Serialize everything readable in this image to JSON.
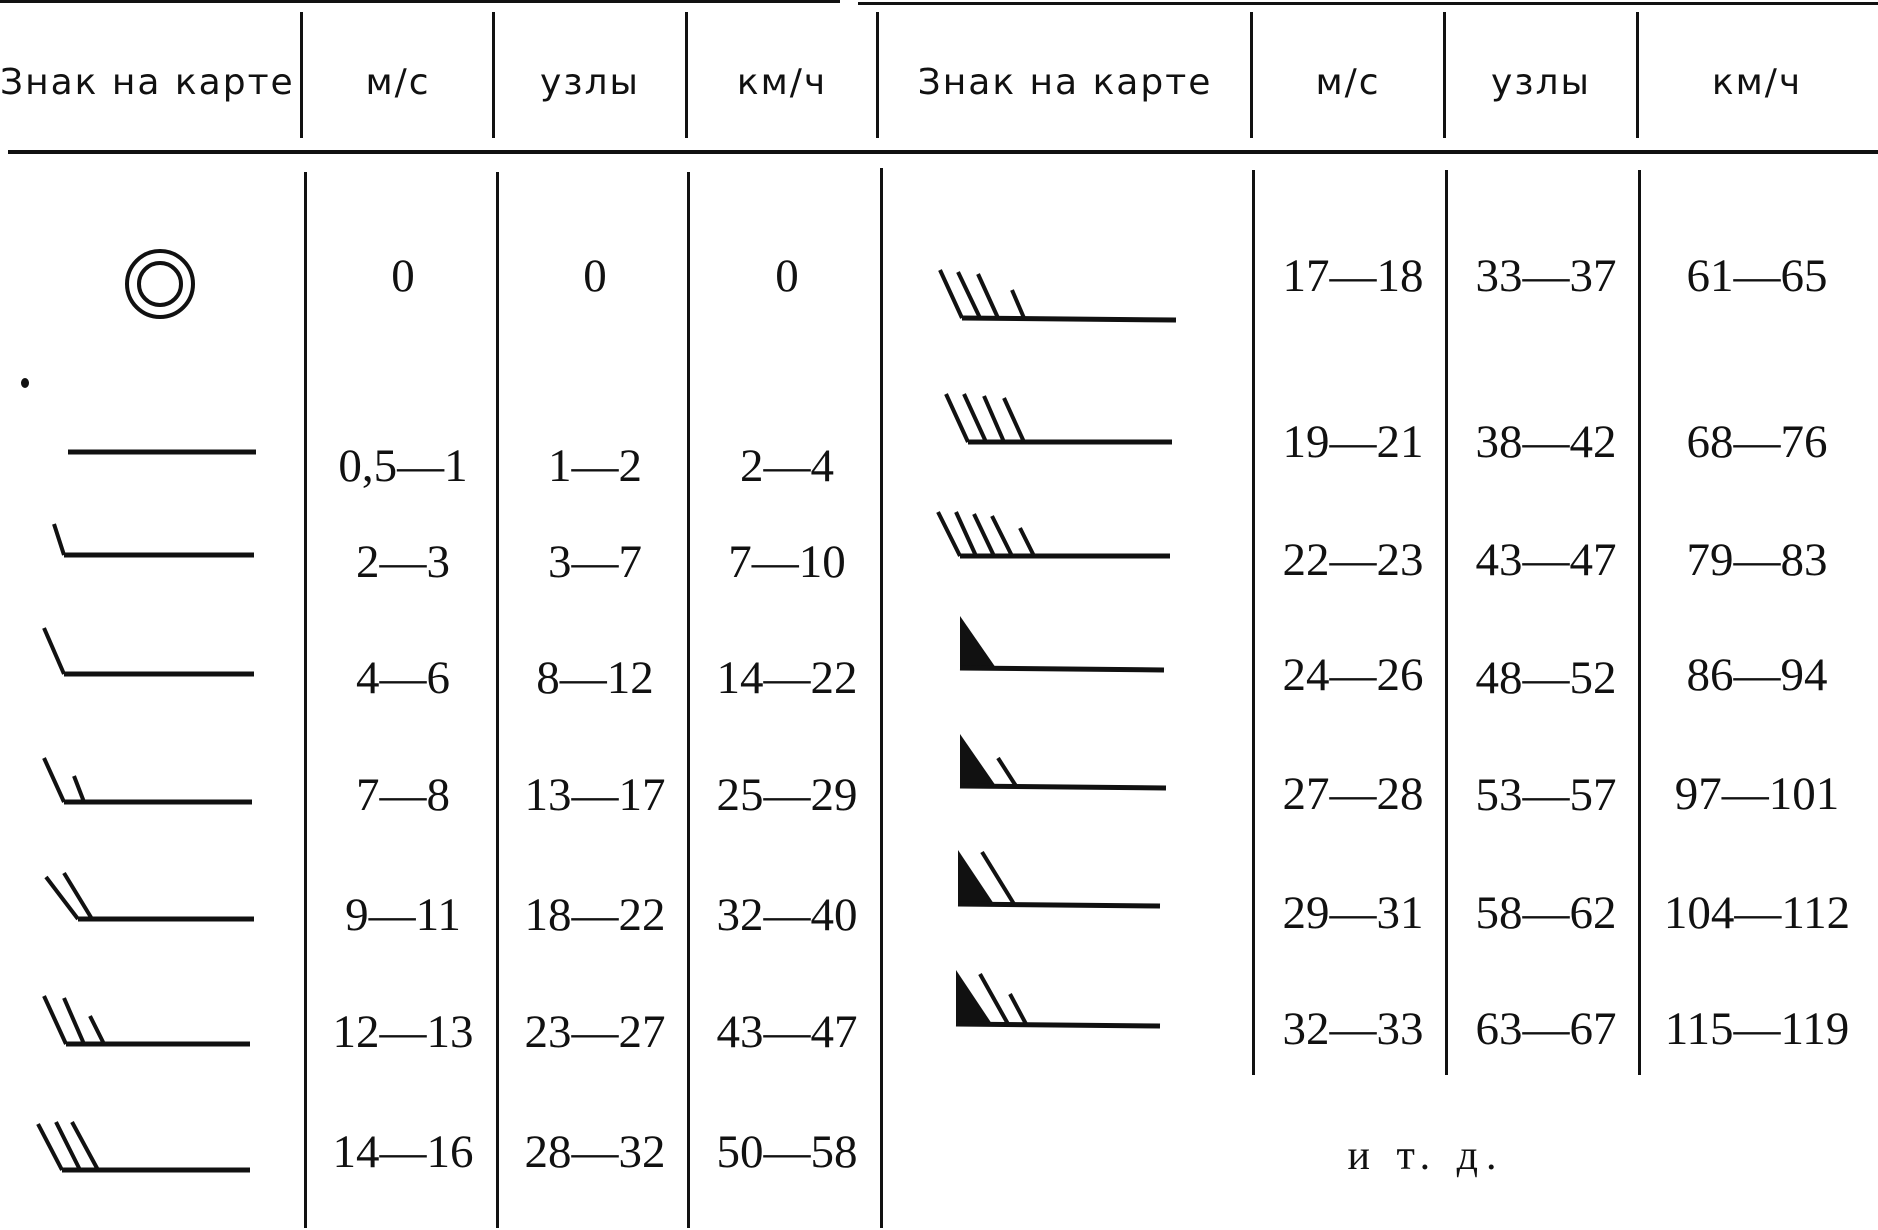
{
  "header": {
    "left": {
      "sign": "Знак на карте",
      "ms": "м/с",
      "knots": "узлы",
      "kmh": "км/ч"
    },
    "right": {
      "sign": "Знак на карте",
      "ms": "м/с",
      "knots": "узлы",
      "kmh": "км/ч"
    }
  },
  "left_rows": [
    {
      "symbol": "calm-circle-icon",
      "ms": "0",
      "knots": "0",
      "kmh": "0"
    },
    {
      "symbol": "wind-shaft-no-barb-icon",
      "ms": "0,5—1",
      "knots": "1—2",
      "kmh": "2—4"
    },
    {
      "symbol": "wind-half-barb-icon",
      "ms": "2—3",
      "knots": "3—7",
      "kmh": "7—10"
    },
    {
      "symbol": "wind-one-barb-icon",
      "ms": "4—6",
      "knots": "8—12",
      "kmh": "14—22"
    },
    {
      "symbol": "wind-one-and-half-barb-icon",
      "ms": "7—8",
      "knots": "13—17",
      "kmh": "25—29"
    },
    {
      "symbol": "wind-two-barbs-icon",
      "ms": "9—11",
      "knots": "18—22",
      "kmh": "32—40"
    },
    {
      "symbol": "wind-two-and-half-barbs-icon",
      "ms": "12—13",
      "knots": "23—27",
      "kmh": "43—47"
    },
    {
      "symbol": "wind-three-barbs-icon",
      "ms": "14—16",
      "knots": "28—32",
      "kmh": "50—58"
    }
  ],
  "right_rows": [
    {
      "symbol": "wind-three-and-half-barbs-icon",
      "ms": "17—18",
      "knots": "33—37",
      "kmh": "61—65"
    },
    {
      "symbol": "wind-four-barbs-icon",
      "ms": "19—21",
      "knots": "38—42",
      "kmh": "68—76"
    },
    {
      "symbol": "wind-four-and-half-barbs-icon",
      "ms": "22—23",
      "knots": "43—47",
      "kmh": "79—83"
    },
    {
      "symbol": "wind-pennant-icon",
      "ms": "24—26",
      "knots": "48—52",
      "kmh": "86—94"
    },
    {
      "symbol": "wind-pennant-half-barb-icon",
      "ms": "27—28",
      "knots": "53—57",
      "kmh": "97—101"
    },
    {
      "symbol": "wind-pennant-one-barb-icon",
      "ms": "29—31",
      "knots": "58—62",
      "kmh": "104—112"
    },
    {
      "symbol": "wind-pennant-one-and-half-barb-icon",
      "ms": "32—33",
      "knots": "63—67",
      "kmh": "115—119"
    }
  ],
  "footnote": "и т. д."
}
